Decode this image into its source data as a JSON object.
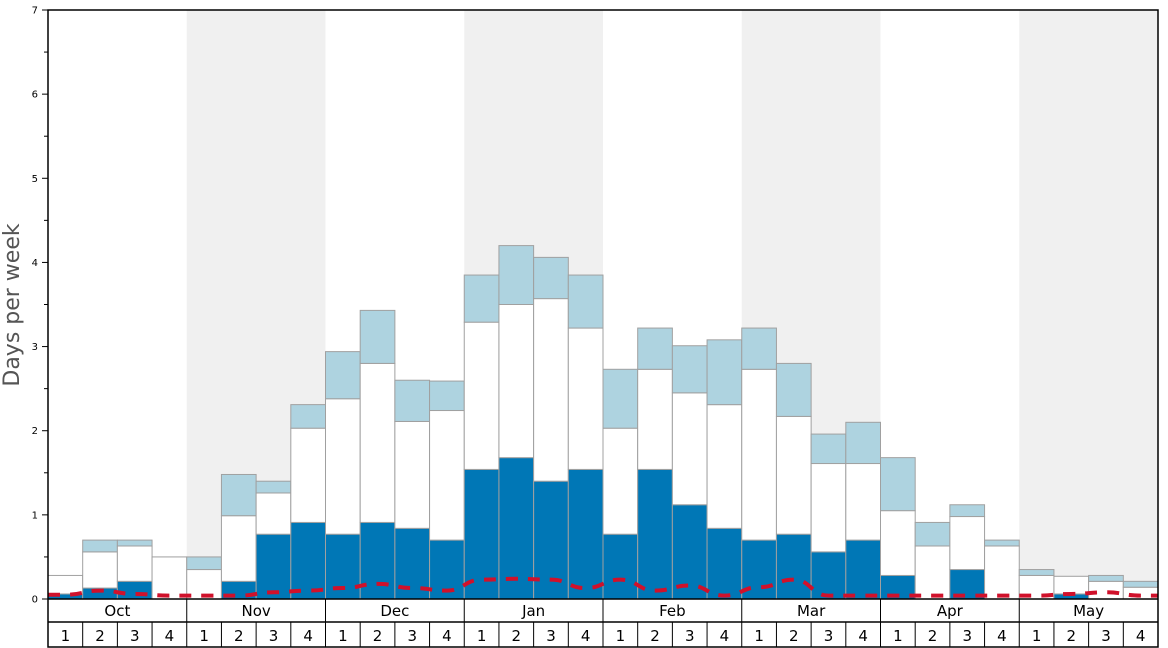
{
  "chart_data": {
    "type": "bar",
    "stacked": true,
    "ylabel": "Days per week",
    "ylim": [
      0,
      7
    ],
    "yticks": [
      "0",
      "1",
      "2",
      "3",
      "4",
      "5",
      "6",
      "7"
    ],
    "months": [
      "Oct",
      "Nov",
      "Dec",
      "Jan",
      "Feb",
      "Mar",
      "Apr",
      "May"
    ],
    "weeks_per_month": [
      "1",
      "2",
      "3",
      "4"
    ],
    "colors": {
      "dark": "#0077b6",
      "white": "#ffffff",
      "light": "#aed3e0",
      "line": "#d0112b",
      "band": "#f0f0f0",
      "bar_edge": "#a0a0a0"
    },
    "series": [
      {
        "key": "dark",
        "values": [
          0.06,
          0.13,
          0.21,
          0,
          0,
          0.21,
          0.77,
          0.91,
          0.77,
          0.91,
          0.84,
          0.7,
          1.54,
          1.68,
          1.4,
          1.54,
          0.77,
          1.54,
          1.12,
          0.84,
          0.7,
          0.77,
          0.56,
          0.7,
          0.28,
          0,
          0.35,
          0,
          0,
          0.06,
          0,
          0
        ]
      },
      {
        "key": "white",
        "values": [
          0.22,
          0.43,
          0.42,
          0.5,
          0.35,
          0.78,
          0.49,
          1.12,
          1.61,
          1.89,
          1.27,
          1.54,
          1.75,
          1.82,
          2.17,
          1.68,
          1.26,
          1.19,
          1.33,
          1.47,
          2.03,
          1.4,
          1.05,
          0.91,
          0.77,
          0.63,
          0.63,
          0.63,
          0.28,
          0.21,
          0.21,
          0.14
        ]
      },
      {
        "key": "light",
        "values": [
          0,
          0.14,
          0.07,
          0,
          0.15,
          0.49,
          0.14,
          0.28,
          0.56,
          0.63,
          0.49,
          0.35,
          0.56,
          0.7,
          0.49,
          0.63,
          0.7,
          0.49,
          0.56,
          0.77,
          0.49,
          0.63,
          0.35,
          0.49,
          0.63,
          0.28,
          0.14,
          0.07,
          0.07,
          0,
          0.07,
          0.07
        ]
      }
    ],
    "line": {
      "key": "line",
      "style": "dashed",
      "values": [
        0.05,
        0.1,
        0.06,
        0.04,
        0.04,
        0.04,
        0.08,
        0.1,
        0.13,
        0.18,
        0.13,
        0.1,
        0.23,
        0.24,
        0.23,
        0.13,
        0.23,
        0.1,
        0.16,
        0.04,
        0.14,
        0.23,
        0.04,
        0.04,
        0.04,
        0.04,
        0.04,
        0.04,
        0.04,
        0.06,
        0.08,
        0.04
      ]
    },
    "grid": false
  }
}
